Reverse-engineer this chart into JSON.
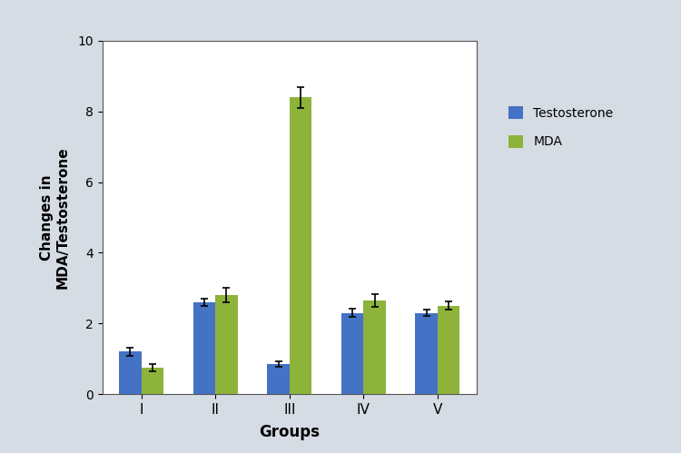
{
  "groups": [
    "I",
    "II",
    "III",
    "IV",
    "V"
  ],
  "testosterone_values": [
    1.2,
    2.6,
    0.85,
    2.3,
    2.3
  ],
  "testosterone_errors": [
    0.12,
    0.1,
    0.08,
    0.12,
    0.08
  ],
  "mda_values": [
    0.75,
    2.8,
    8.4,
    2.65,
    2.5
  ],
  "mda_errors": [
    0.1,
    0.2,
    0.3,
    0.18,
    0.12
  ],
  "testosterone_color": "#4472C4",
  "mda_color": "#8DB33A",
  "ylabel": "Changes in\nMDA/Testosterone",
  "xlabel": "Groups",
  "ylim": [
    0,
    10
  ],
  "yticks": [
    0,
    2,
    4,
    6,
    8,
    10
  ],
  "bar_width": 0.3,
  "legend_labels": [
    "Testosterone",
    "MDA"
  ],
  "background_color": "#D6DCE4",
  "plot_bg_color": "#FFFFFF",
  "title": ""
}
